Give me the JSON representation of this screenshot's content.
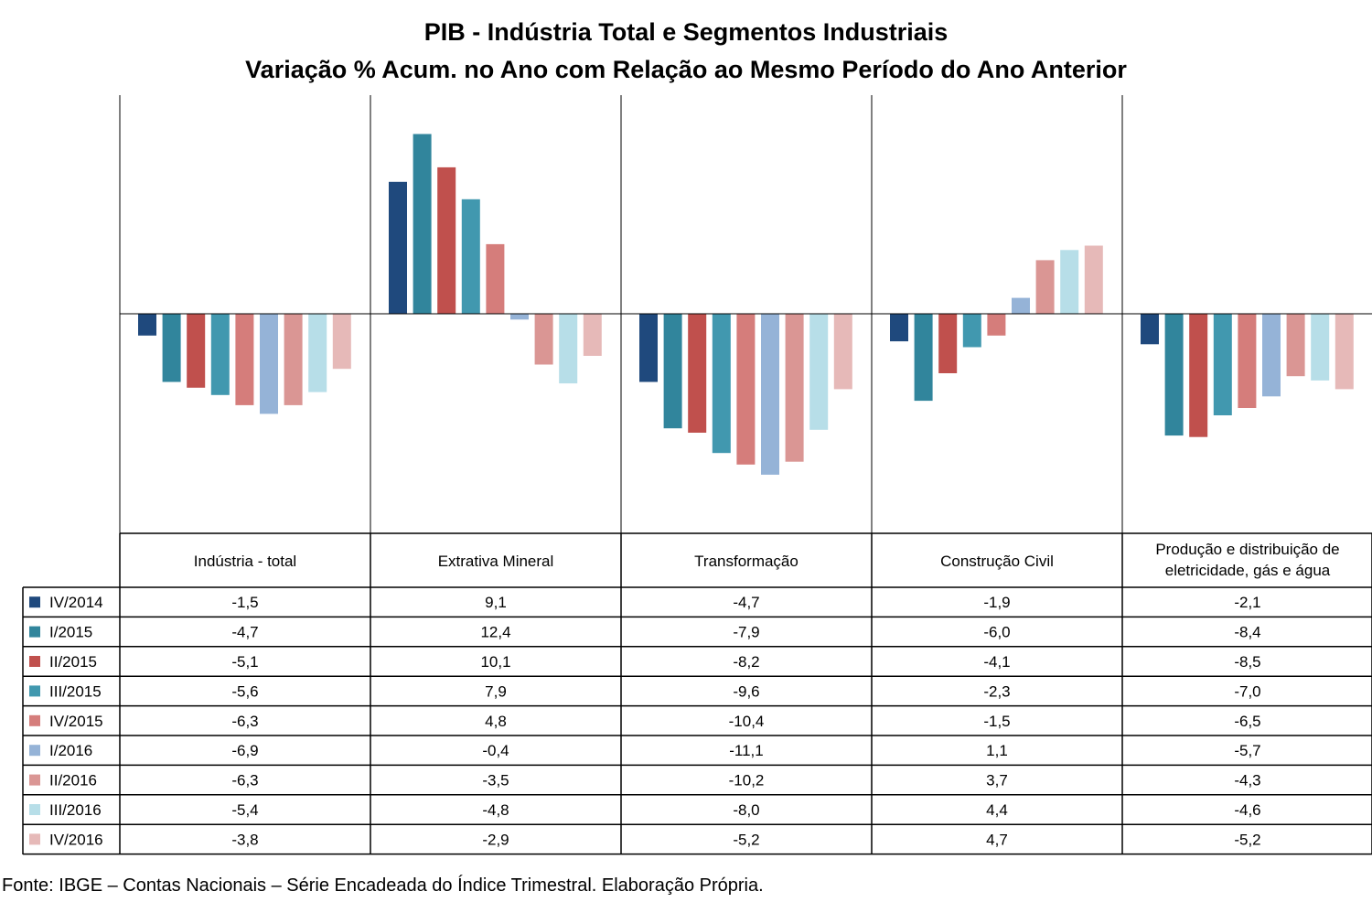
{
  "chart_data": {
    "type": "bar",
    "title": "PIB - Indústria Total e Segmentos Industriais",
    "subtitle": "Variação % Acum. no Ano com Relação ao Mesmo Período do Ano Anterior",
    "categories": [
      "Indústria - total",
      "Extrativa Mineral",
      "Transformação",
      "Construção Civil",
      "Produção e distribuição de eletricidade, gás e água"
    ],
    "series": [
      {
        "name": "IV/2014",
        "color": "#1F497D",
        "values": [
          -1.5,
          9.1,
          -4.7,
          -1.9,
          -2.1
        ],
        "labels": [
          "-1,5",
          "9,1",
          "-4,7",
          "-1,9",
          "-2,1"
        ]
      },
      {
        "name": "I/2015",
        "color": "#31859C",
        "values": [
          -4.7,
          12.4,
          -7.9,
          -6.0,
          -8.4
        ],
        "labels": [
          "-4,7",
          "12,4",
          "-7,9",
          "-6,0",
          "-8,4"
        ]
      },
      {
        "name": "II/2015",
        "color": "#C0504D",
        "values": [
          -5.1,
          10.1,
          -8.2,
          -4.1,
          -8.5
        ],
        "labels": [
          "-5,1",
          "10,1",
          "-8,2",
          "-4,1",
          "-8,5"
        ]
      },
      {
        "name": "III/2015",
        "color": "#4198AF",
        "values": [
          -5.6,
          7.9,
          -9.6,
          -2.3,
          -7.0
        ],
        "labels": [
          "-5,6",
          "7,9",
          "-9,6",
          "-2,3",
          "-7,0"
        ]
      },
      {
        "name": "IV/2015",
        "color": "#D57D7B",
        "values": [
          -6.3,
          4.8,
          -10.4,
          -1.5,
          -6.5
        ],
        "labels": [
          "-6,3",
          "4,8",
          "-10,4",
          "-1,5",
          "-6,5"
        ]
      },
      {
        "name": "I/2016",
        "color": "#95B3D7",
        "values": [
          -6.9,
          -0.4,
          -11.1,
          1.1,
          -5.7
        ],
        "labels": [
          "-6,9",
          "-0,4",
          "-11,1",
          "1,1",
          "-5,7"
        ]
      },
      {
        "name": "II/2016",
        "color": "#DA9694",
        "values": [
          -6.3,
          -3.5,
          -10.2,
          3.7,
          -4.3
        ],
        "labels": [
          "-6,3",
          "-3,5",
          "-10,2",
          "3,7",
          "-4,3"
        ]
      },
      {
        "name": "III/2016",
        "color": "#B7DEE8",
        "values": [
          -5.4,
          -4.8,
          -8.0,
          4.4,
          -4.6
        ],
        "labels": [
          "-5,4",
          "-4,8",
          "-8,0",
          "4,4",
          "-4,6"
        ]
      },
      {
        "name": "IV/2016",
        "color": "#E6B9B8",
        "values": [
          -3.8,
          -2.9,
          -5.2,
          4.7,
          -5.2
        ],
        "labels": [
          "-3,8",
          "-2,9",
          "-5,2",
          "4,7",
          "-5,2"
        ]
      }
    ],
    "ylim": [
      -15,
      15
    ],
    "grid": false,
    "legend": "data table below chart"
  },
  "footer": "Fonte: IBGE – Contas Nacionais – Série Encadeada do Índice Trimestral. Elaboração Própria."
}
